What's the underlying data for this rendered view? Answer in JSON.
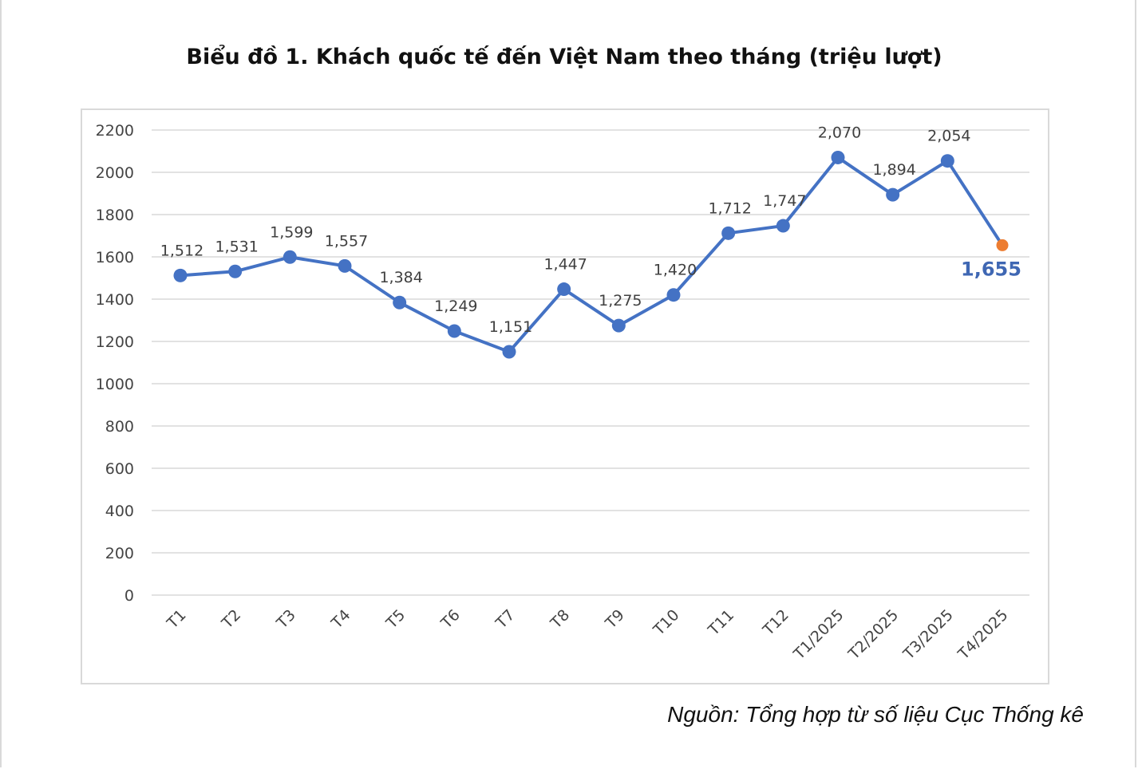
{
  "title": "Biểu đồ 1. Khách quốc tế đến Việt Nam theo tháng (triệu lượt)",
  "source": "Nguồn: Tổng hợp từ số liệu Cục Thống kê",
  "chart_data": {
    "type": "line",
    "title": "Biểu đồ 1. Khách quốc tế đến Việt Nam theo tháng (triệu lượt)",
    "xlabel": "",
    "ylabel": "",
    "ylim": [
      0,
      2200
    ],
    "yticks": [
      0,
      200,
      400,
      600,
      800,
      1000,
      1200,
      1400,
      1600,
      1800,
      2000,
      2200
    ],
    "grid": true,
    "legend": "none",
    "categories": [
      "T1",
      "T2",
      "T3",
      "T4",
      "T5",
      "T6",
      "T7",
      "T8",
      "T9",
      "T10",
      "T11",
      "T12",
      "T1/2025",
      "T2/2025",
      "T3/2025",
      "T4/2025"
    ],
    "series": [
      {
        "values": [
          1512,
          1531,
          1599,
          1557,
          1384,
          1249,
          1151,
          1447,
          1275,
          1420,
          1712,
          1747,
          2070,
          1894,
          2054,
          1655
        ],
        "labels": [
          "1,512",
          "1,531",
          "1,599",
          "1,557",
          "1,384",
          "1,249",
          "1,151",
          "1,447",
          "1,275",
          "1,420",
          "1,712",
          "1,747",
          "2,070",
          "1,894",
          "2,054",
          "1,655"
        ],
        "color": "#4472c4",
        "highlight_last_color": "#ed7d31"
      }
    ]
  }
}
